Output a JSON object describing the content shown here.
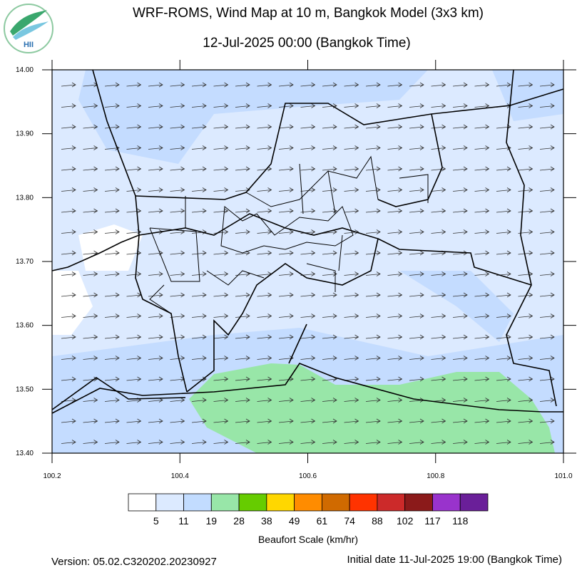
{
  "header": {
    "logo": "HII",
    "title": "WRF-ROMS, Wind Map at 10 m, Bangkok Model (3x3 km)",
    "subtitle": "12-Jul-2025 00:00 (Bangkok Time)"
  },
  "map": {
    "xlim": [
      100.2,
      101.0
    ],
    "ylim": [
      13.4,
      14.0
    ],
    "xticks": [
      100.2,
      100.4,
      100.6,
      100.8,
      {
        "value": 101.0,
        "label": "101.0"
      }
    ],
    "yticks": [
      {
        "value": 14.0,
        "label": "14.00"
      },
      {
        "value": 13.9,
        "label": "13.90"
      },
      {
        "value": 13.8,
        "label": "13.80"
      },
      {
        "value": 13.7,
        "label": "13.70"
      },
      {
        "value": 13.6,
        "label": "13.60"
      },
      {
        "value": 13.5,
        "label": "13.50"
      },
      {
        "value": 13.4,
        "label": "13.40"
      }
    ]
  },
  "legend": {
    "title": "Beaufort Scale (km/hr)",
    "colors": [
      "#ffffff",
      "#dceaff",
      "#c2dcff",
      "#98e6a8",
      "#66cc00",
      "#ffd700",
      "#ff8c00",
      "#d06a00",
      "#ff3300",
      "#cc2a2a",
      "#8b1a1a",
      "#9933cc",
      "#6a1f99"
    ],
    "labels": [
      5,
      11,
      19,
      28,
      38,
      49,
      61,
      74,
      88,
      102,
      117,
      118
    ]
  },
  "footer": {
    "version": "Version: 05.02.C320202.20230927",
    "init": "Initial date 11-Jul-2025 19:00 (Bangkok Time)"
  }
}
